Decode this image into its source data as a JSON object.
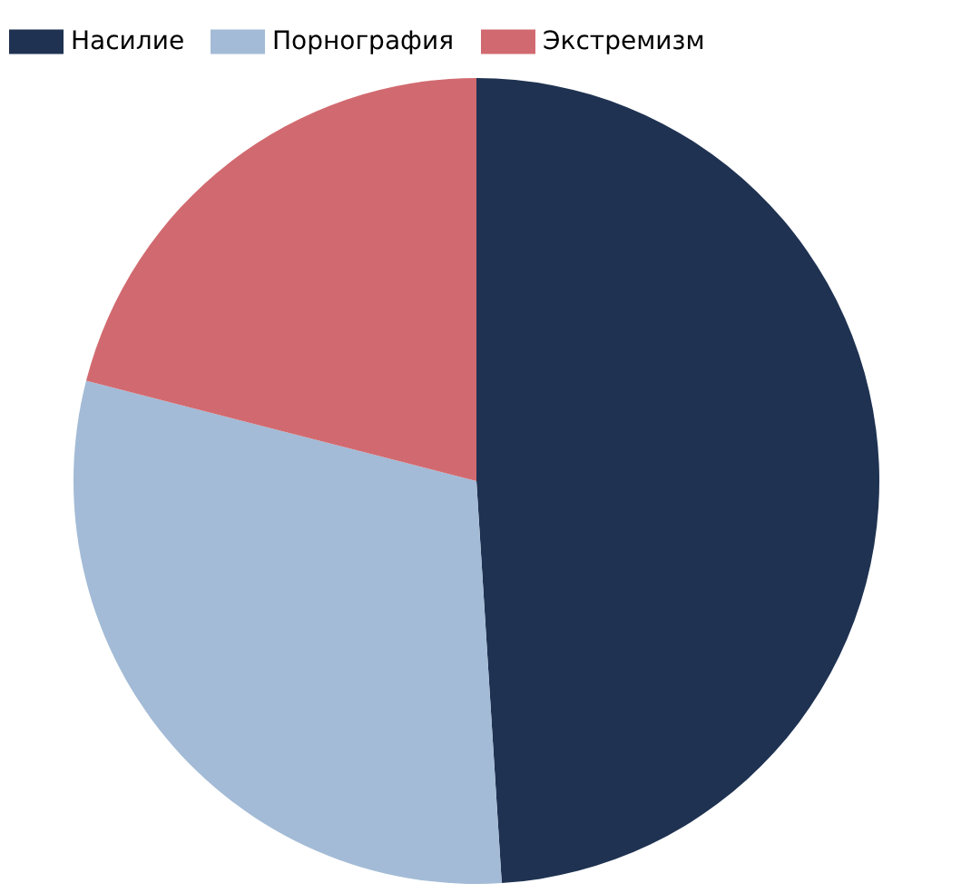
{
  "chart_data": {
    "type": "pie",
    "categories": [
      "Насилие",
      "Порнография",
      "Экстремизм"
    ],
    "values": [
      49,
      30,
      21
    ],
    "colors": [
      "#1f3252",
      "#a3bbd6",
      "#d16a70"
    ],
    "legend": "top"
  }
}
